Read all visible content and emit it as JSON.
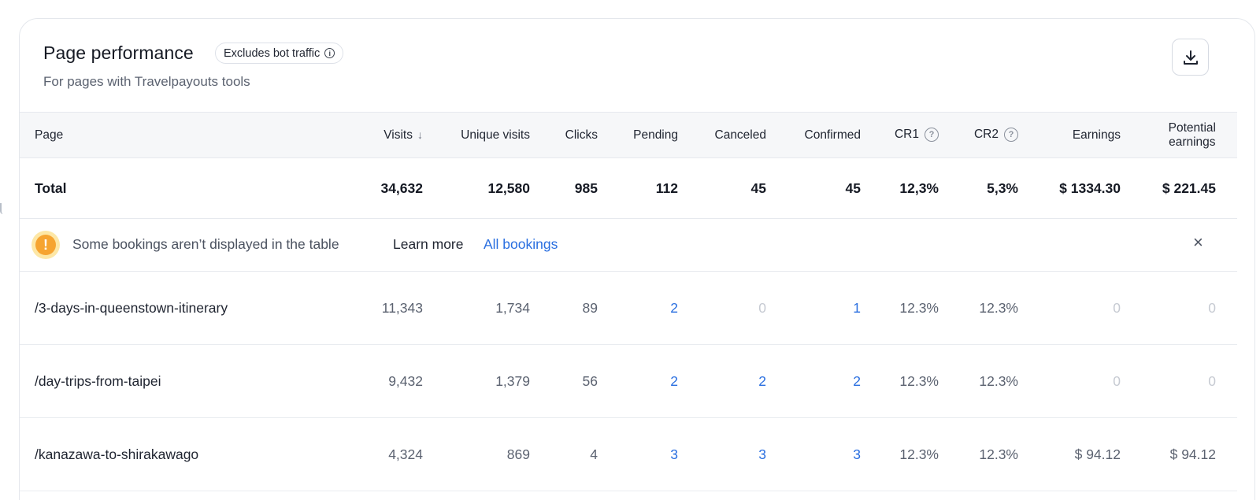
{
  "header": {
    "title": "Page performance",
    "badge": "Excludes bot traffic",
    "subtitle": "For pages with Travelpayouts tools"
  },
  "columns": {
    "page": "Page",
    "visits": "Visits",
    "unique_visits": "Unique visits",
    "clicks": "Clicks",
    "pending": "Pending",
    "canceled": "Canceled",
    "confirmed": "Confirmed",
    "cr1": "CR1",
    "cr2": "CR2",
    "earnings": "Earnings",
    "potential_line1": "Potential",
    "potential_line2": "earnings"
  },
  "total": {
    "label": "Total",
    "visits": "34,632",
    "unique_visits": "12,580",
    "clicks": "985",
    "pending": "112",
    "canceled": "45",
    "confirmed": "45",
    "cr1": "12,3%",
    "cr2": "5,3%",
    "earnings": "$ 1334.30",
    "potential": "$ 221.45"
  },
  "notice": {
    "text": "Some bookings aren’t displayed in the table",
    "learn_more": "Learn more",
    "all_bookings": "All bookings"
  },
  "rows": [
    {
      "page": "/3-days-in-queenstown-itinerary",
      "visits": "11,343",
      "unique_visits": "1,734",
      "clicks": "89",
      "pending": "2",
      "canceled": "0",
      "confirmed": "1",
      "cr1": "12.3%",
      "cr2": "12.3%",
      "earnings": "0",
      "potential": "0"
    },
    {
      "page": "/day-trips-from-taipei",
      "visits": "9,432",
      "unique_visits": "1,379",
      "clicks": "56",
      "pending": "2",
      "canceled": "2",
      "confirmed": "2",
      "cr1": "12.3%",
      "cr2": "12.3%",
      "earnings": "0",
      "potential": "0"
    },
    {
      "page": "/kanazawa-to-shirakawago",
      "visits": "4,324",
      "unique_visits": "869",
      "clicks": "4",
      "pending": "3",
      "canceled": "3",
      "confirmed": "3",
      "cr1": "12.3%",
      "cr2": "12.3%",
      "earnings": "$ 94.12",
      "potential": "$ 94.12"
    }
  ],
  "colors": {
    "accent": "#2a6fe0",
    "warning": "#f6a431",
    "muted": "#c6cad2"
  },
  "icons": {
    "badge": "info-icon",
    "download": "download-icon",
    "sort": "arrow-down-icon",
    "help": "question-circle-icon",
    "warning": "exclamation-circle-icon",
    "close": "close-icon"
  }
}
